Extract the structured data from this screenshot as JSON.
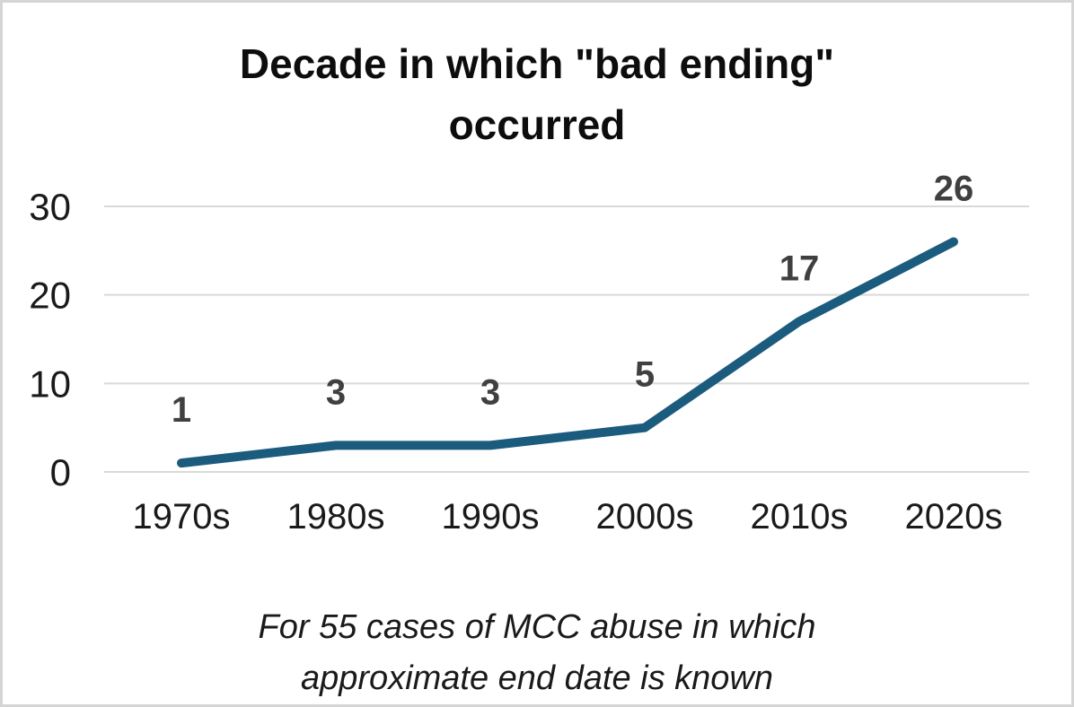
{
  "chart_data": {
    "type": "line",
    "title": "Decade in which \"bad ending\" occurred",
    "title_lines": [
      "Decade in which \"bad ending\"",
      "occurred"
    ],
    "categories": [
      "1970s",
      "1980s",
      "1990s",
      "2000s",
      "2010s",
      "2020s"
    ],
    "values": [
      1,
      3,
      3,
      5,
      17,
      26
    ],
    "data_labels": [
      "1",
      "3",
      "3",
      "5",
      "17",
      "26"
    ],
    "yticks": [
      0,
      10,
      20,
      30
    ],
    "ylim": [
      0,
      30
    ],
    "grid": true,
    "legend": "none",
    "xlabel": "",
    "ylabel": "",
    "caption_lines": [
      "For 55 cases of MCC abuse in which",
      "approximate end date is known"
    ],
    "colors": {
      "line": "#1b5c7e",
      "data_label": "#404040",
      "grid": "#d9d9d9",
      "axis_text": "#1a1a1a",
      "title": "#0d0d0d",
      "border": "#d5d5d5",
      "background": "#ffffff"
    }
  }
}
